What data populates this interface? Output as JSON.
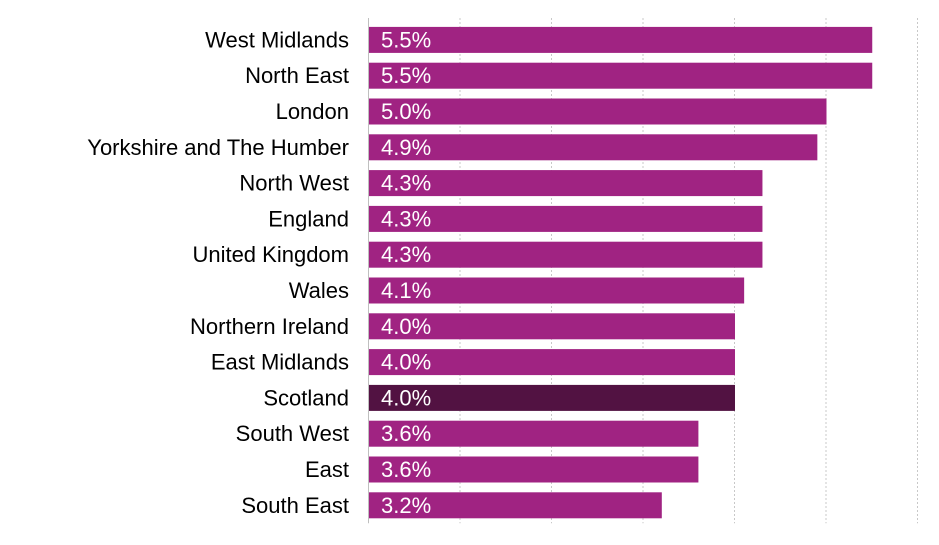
{
  "chart_data": {
    "type": "bar",
    "orientation": "horizontal",
    "categories": [
      "West Midlands",
      "North East",
      "London",
      "Yorkshire and The Humber",
      "North West",
      "England",
      "United Kingdom",
      "Wales",
      "Northern Ireland",
      "East Midlands",
      "Scotland",
      "South West",
      "East",
      "South East"
    ],
    "values": [
      5.5,
      5.5,
      5.0,
      4.9,
      4.3,
      4.3,
      4.3,
      4.1,
      4.0,
      4.0,
      4.0,
      3.6,
      3.6,
      3.2
    ],
    "value_labels": [
      "5.5%",
      "5.5%",
      "5.0%",
      "4.9%",
      "4.3%",
      "4.3%",
      "4.3%",
      "4.1%",
      "4.0%",
      "4.0%",
      "4.0%",
      "3.6%",
      "3.6%",
      "3.2%"
    ],
    "xlim": [
      0,
      6
    ],
    "grid": "vertical dashed",
    "legend": "none",
    "colors": {
      "bar": "#a02382",
      "highlight": "#521242",
      "value_label": "#ffffff",
      "gridline": "#c8c8c8",
      "axis": "#bfbfbf"
    },
    "highlight_category": "Scotland"
  }
}
